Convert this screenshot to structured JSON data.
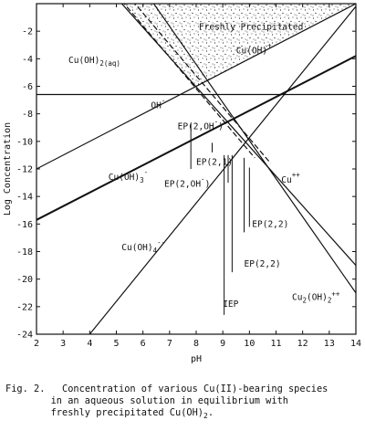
{
  "chart_data": {
    "type": "line",
    "title": "",
    "xlabel": "pH",
    "ylabel": "Log Concentration",
    "xlim": [
      2,
      14
    ],
    "ylim": [
      -24,
      0
    ],
    "xticks": [
      "2",
      "3",
      "4",
      "5",
      "6",
      "7",
      "8",
      "9",
      "10",
      "11",
      "12",
      "13",
      "14"
    ],
    "yticks": [
      "-2",
      "-4",
      "-6",
      "-8",
      "-10",
      "-12",
      "-14",
      "-16",
      "-18",
      "-20",
      "-22",
      "-24"
    ],
    "shaded_region": {
      "label": "Freshly Precipitated",
      "pattern": "stipple"
    },
    "series": [
      {
        "name": "Cu(OH)2(aq)",
        "x": [
          2,
          14
        ],
        "y": [
          -6.6,
          -6.6
        ]
      },
      {
        "name": "OH-",
        "x": [
          2,
          14
        ],
        "y": [
          -12,
          0
        ]
      },
      {
        "name": "Cu(OH)3-",
        "x": [
          2,
          14
        ],
        "y": [
          -15.7,
          -3.8
        ]
      },
      {
        "name": "Cu(OH)4--",
        "x": [
          4,
          14
        ],
        "y": [
          -24,
          -0.2
        ]
      },
      {
        "name": "Cu++",
        "x": [
          4,
          14
        ],
        "y": [
          2.6,
          -19
        ]
      },
      {
        "name": "Cu2(OH)2++",
        "x": [
          5.5,
          14
        ],
        "y": [
          2.5,
          -21
        ]
      },
      {
        "name": "Cu(OH)+",
        "x": [
          4.2,
          10.2
        ],
        "y": [
          2.5,
          -11.2
        ],
        "style": "dashed"
      },
      {
        "name": "Cu(OH)+",
        "x": [
          4.6,
          10.8
        ],
        "y": [
          2.5,
          -11.6
        ],
        "style": "dashed"
      }
    ],
    "annotations": [
      {
        "text": "Cu(OH)",
        "sub": "",
        "sup": "+",
        "x": 9.5,
        "y": -3.6
      },
      {
        "text": "Cu(OH)",
        "sub": "2(aq)",
        "sup": "",
        "x": 3.2,
        "y": -4.3
      },
      {
        "text": "OH",
        "sub": "",
        "sup": "-",
        "x": 6.3,
        "y": -7.6
      },
      {
        "text": "EP(2,OH",
        "sub": "",
        "sup": "-",
        "suffix": ")",
        "x": 7.3,
        "y": -9.1
      },
      {
        "text": "EP(2,1)",
        "sub": "",
        "sup": "",
        "x": 8.0,
        "y": -11.7
      },
      {
        "text": "EP(2,OH",
        "sub": "",
        "sup": "-",
        "suffix": ")",
        "x": 6.8,
        "y": -13.3
      },
      {
        "text": "Cu(OH)",
        "sub": "3",
        "sup": "-",
        "x": 4.7,
        "y": -12.8
      },
      {
        "text": "Cu",
        "sub": "",
        "sup": "++",
        "x": 11.2,
        "y": -13.0
      },
      {
        "text": "EP(2,2)",
        "sub": "",
        "sup": "",
        "x": 10.1,
        "y": -16.2
      },
      {
        "text": "EP(2,2)",
        "sub": "",
        "sup": "",
        "x": 9.8,
        "y": -19.1
      },
      {
        "text": "Cu(OH)",
        "sub": "4",
        "sup": "--",
        "x": 5.2,
        "y": -17.9
      },
      {
        "text": "IEP",
        "sub": "",
        "sup": "",
        "x": 9.0,
        "y": -22.0
      },
      {
        "text": "Cu",
        "sub": "2",
        "sup": "",
        "mid": "(OH)",
        "sub2": "2",
        "sup2": "++",
        "x": 11.6,
        "y": -21.5
      }
    ],
    "markers": [
      {
        "x": 7.8,
        "y1": -8.7,
        "y2": -12.0
      },
      {
        "x": 8.6,
        "y1": -10.1,
        "y2": -10.8
      },
      {
        "x": 9.2,
        "y1": -11.0,
        "y2": -13.0
      },
      {
        "x": 9.8,
        "y1": -11.2,
        "y2": -16.6
      },
      {
        "x": 10.0,
        "y1": -11.9,
        "y2": -16.2
      },
      {
        "x": 9.35,
        "y1": -11.0,
        "y2": -19.5
      },
      {
        "x": 9.05,
        "y1": -11.0,
        "y2": -22.6
      }
    ],
    "grid": false,
    "legend": "none"
  },
  "caption": {
    "prefix": "Fig. 2.",
    "line1": "Concentration of various Cu(II)-bearing species",
    "line2": "in an aqueous solution in equilibrium with",
    "line3": "freshly precipitated Cu(OH)",
    "line3_sub": "2",
    "line3_end": "."
  }
}
